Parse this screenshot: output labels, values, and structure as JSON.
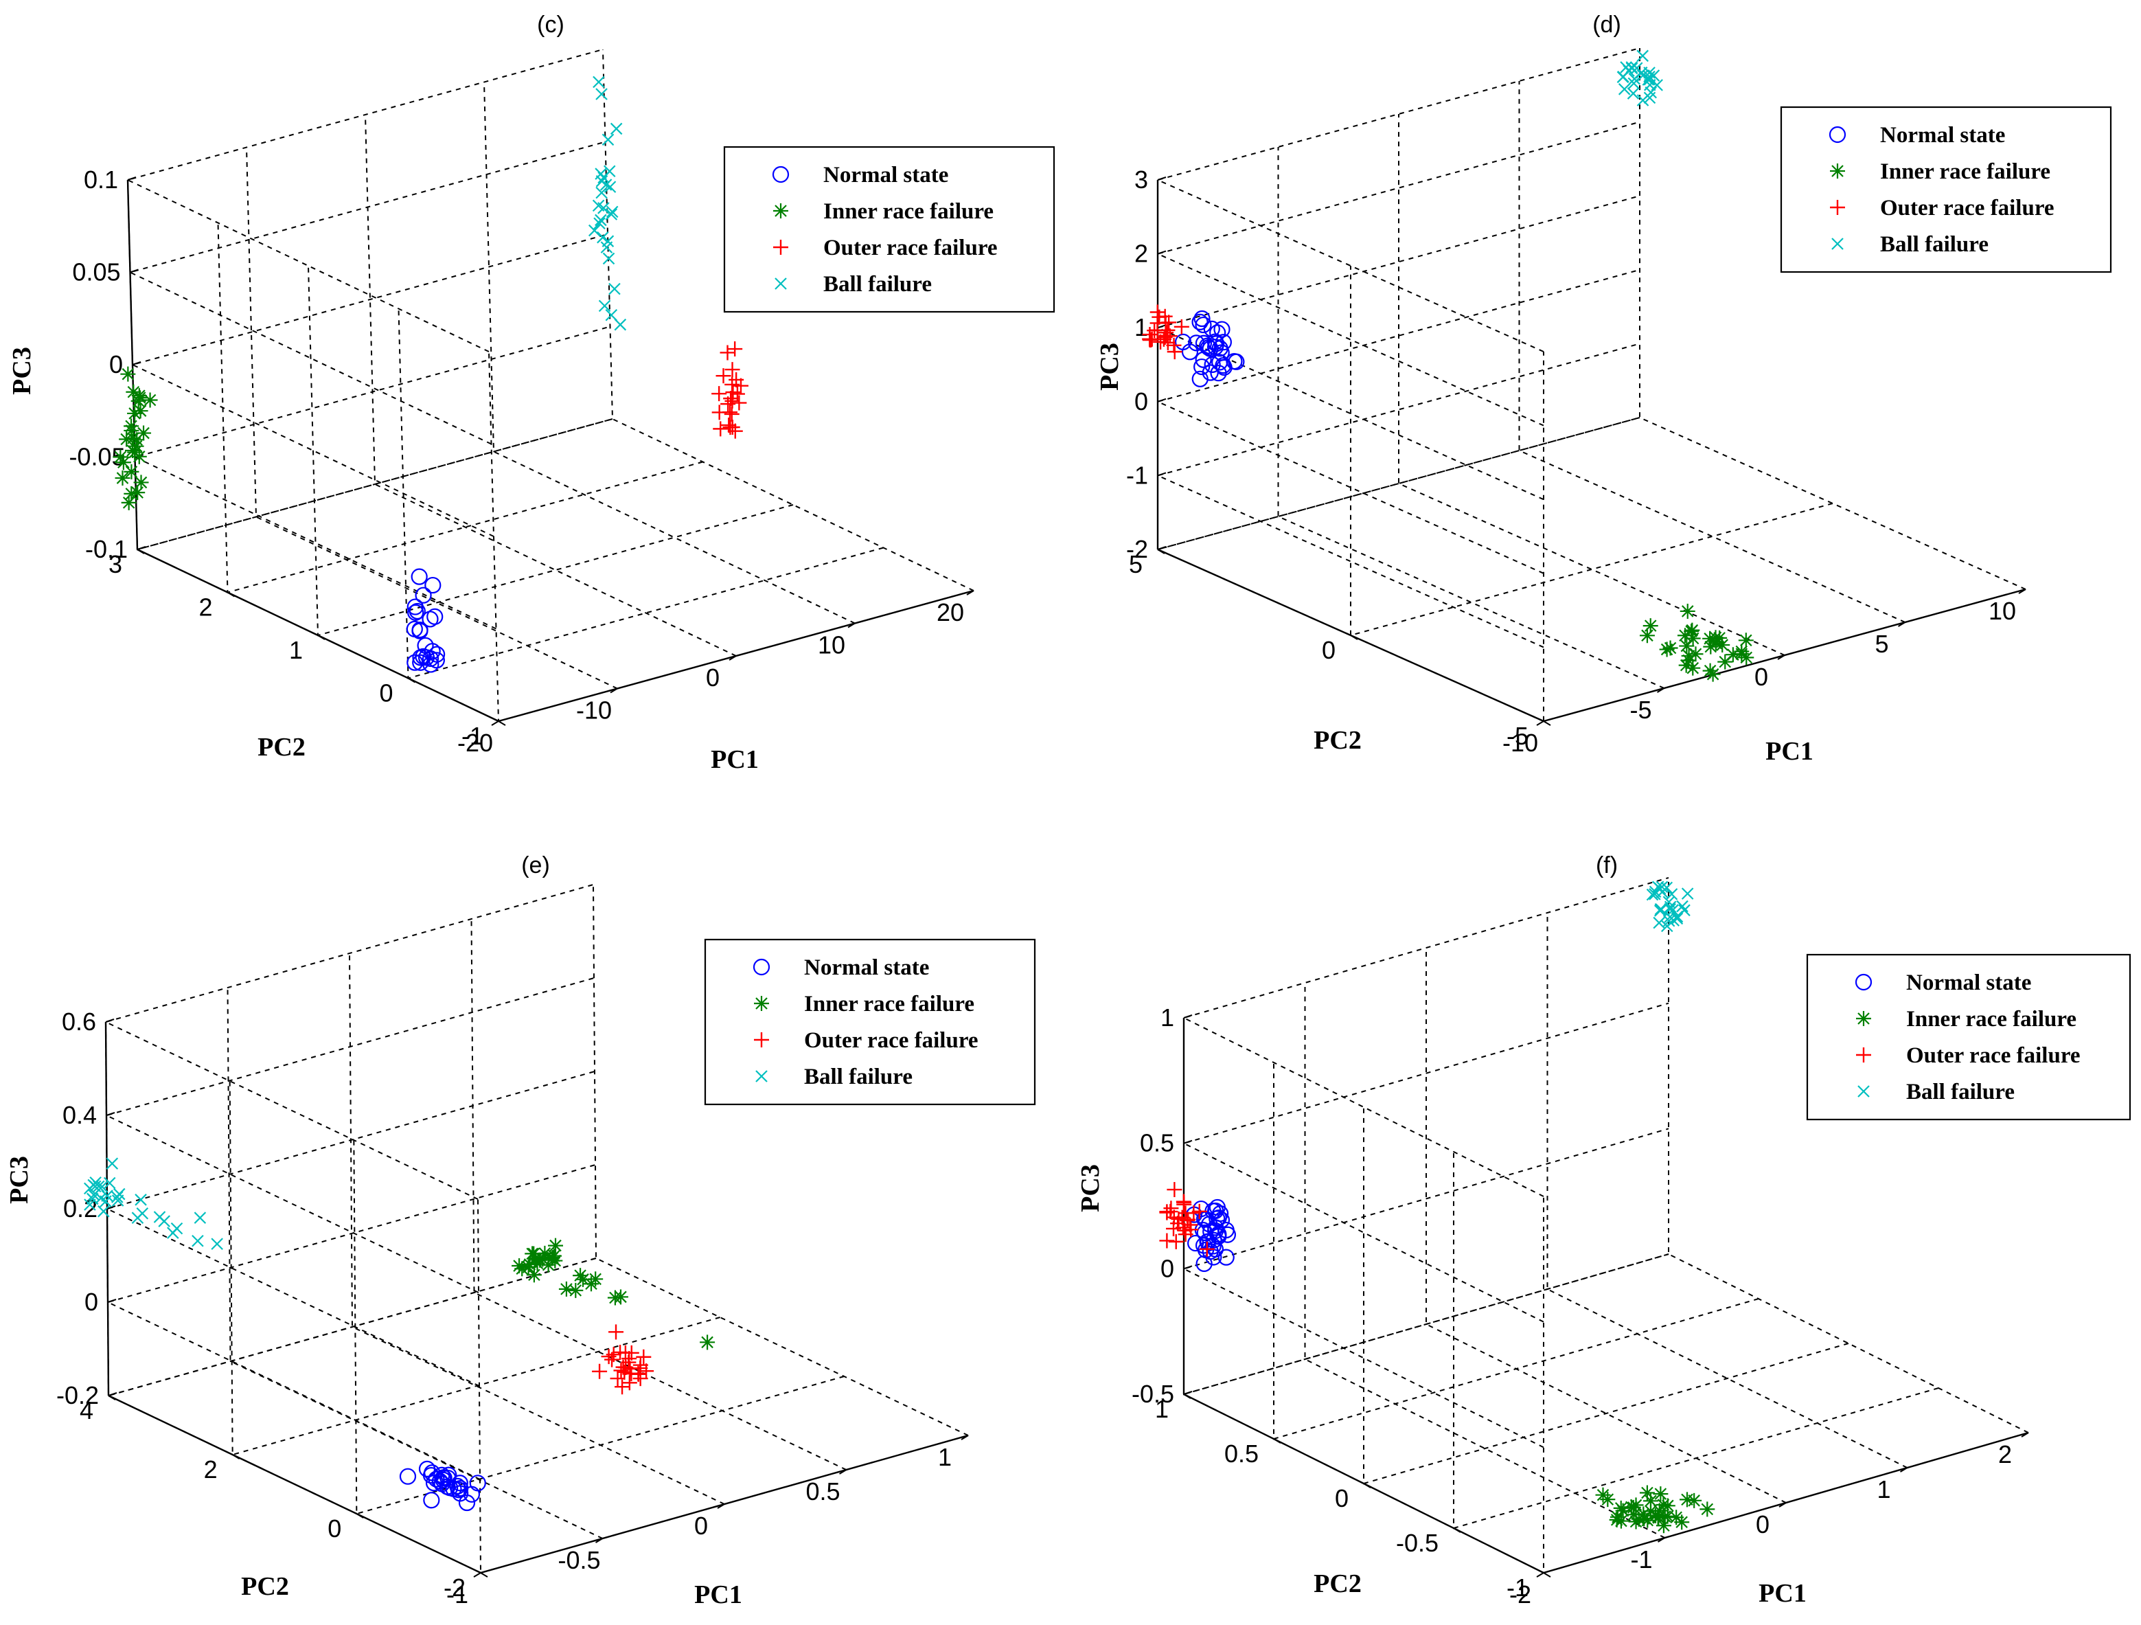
{
  "chart_data": [
    {
      "id": "c",
      "type": "scatter",
      "title": "(c)",
      "xlabel": "PC1",
      "ylabel": "PC2",
      "zlabel": "PC3",
      "xlim": [
        -20,
        20
      ],
      "ylim": [
        -1,
        3
      ],
      "zlim": [
        -0.1,
        0.1
      ],
      "xticks": [
        "-20",
        "-10",
        "0",
        "10",
        "20"
      ],
      "yticks": [
        "-1",
        "0",
        "1",
        "2",
        "3"
      ],
      "zticks": [
        "-0.1",
        "-0.05",
        "0",
        "0.05",
        "0.1"
      ],
      "legend": [
        "Normal state",
        "Inner race failure",
        "Outer race failure",
        "Ball failure"
      ],
      "series": [
        {
          "name": "Normal state",
          "marker": "o",
          "color": "#0000ff",
          "center": [
            -15,
            0.5,
            -0.1
          ],
          "spread": [
            0.6,
            0.05,
            0.022
          ],
          "n": 22,
          "seed": 11
        },
        {
          "name": "Inner race failure",
          "marker": "*",
          "color": "#008000",
          "center": [
            -20,
            3,
            -0.04
          ],
          "spread": [
            0.7,
            0.05,
            0.022
          ],
          "n": 26,
          "seed": 12
        },
        {
          "name": "Outer race failure",
          "marker": "+",
          "color": "#ff0000",
          "center": [
            15,
            1,
            -0.035
          ],
          "spread": [
            0.4,
            0.05,
            0.012
          ],
          "n": 22,
          "seed": 13
        },
        {
          "name": "Ball failure",
          "marker": "x",
          "color": "#00bfbf",
          "center": [
            20,
            3,
            0.02
          ],
          "spread": [
            0.3,
            0.05,
            0.03
          ],
          "n": 26,
          "seed": 14
        }
      ]
    },
    {
      "id": "d",
      "type": "scatter",
      "title": "(d)",
      "xlabel": "PC1",
      "ylabel": "PC2",
      "zlabel": "PC3",
      "xlim": [
        -10,
        10
      ],
      "ylim": [
        -5,
        5
      ],
      "zlim": [
        -2,
        3
      ],
      "xticks": [
        "-10",
        "-5",
        "0",
        "5",
        "10"
      ],
      "yticks": [
        "-5",
        "0",
        "5"
      ],
      "zticks": [
        "-2",
        "-1",
        "0",
        "1",
        "2",
        "3"
      ],
      "legend": [
        "Normal state",
        "Inner race failure",
        "Outer race failure",
        "Ball failure"
      ],
      "series": [
        {
          "name": "Normal state",
          "marker": "o",
          "color": "#0000ff",
          "center": [
            -10,
            3.6,
            1.0
          ],
          "spread": [
            0.3,
            0.3,
            0.18
          ],
          "n": 30,
          "seed": 21
        },
        {
          "name": "Inner race failure",
          "marker": "*",
          "color": "#008000",
          "center": [
            -2,
            -4,
            -2.0
          ],
          "spread": [
            0.6,
            0.6,
            0.12
          ],
          "n": 30,
          "seed": 22
        },
        {
          "name": "Outer race failure",
          "marker": "+",
          "color": "#ff0000",
          "center": [
            -10,
            5,
            1.0
          ],
          "spread": [
            0.3,
            0.3,
            0.14
          ],
          "n": 24,
          "seed": 23
        },
        {
          "name": "Ball failure",
          "marker": "x",
          "color": "#00bfbf",
          "center": [
            10,
            5,
            2.6
          ],
          "spread": [
            0.3,
            0.3,
            0.12
          ],
          "n": 24,
          "seed": 24
        }
      ]
    },
    {
      "id": "e",
      "type": "scatter",
      "title": "(e)",
      "xlabel": "PC1",
      "ylabel": "PC2",
      "zlabel": "PC3",
      "xlim": [
        -1,
        1
      ],
      "ylim": [
        -2,
        4
      ],
      "zlim": [
        -0.2,
        0.6
      ],
      "xticks": [
        "-1",
        "-0.5",
        "0",
        "0.5",
        "1"
      ],
      "yticks": [
        "-2",
        "0",
        "2",
        "4"
      ],
      "zticks": [
        "-0.2",
        "0",
        "0.2",
        "0.4",
        "0.6"
      ],
      "legend": [
        "Normal state",
        "Inner race failure",
        "Outer race failure",
        "Ball failure"
      ],
      "series": [
        {
          "name": "Normal state",
          "marker": "o",
          "color": "#0000ff",
          "center": [
            -0.6,
            0.0,
            -0.2
          ],
          "spread": [
            0.03,
            0.25,
            0.01
          ],
          "n": 26,
          "seed": 31
        },
        {
          "name": "Inner race failure",
          "marker": "*",
          "color": "#008000",
          "center": [
            0.8,
            4,
            -0.18
          ],
          "spread": [
            0.04,
            0.6,
            0.008
          ],
          "n": 28,
          "seed": 32
        },
        {
          "name": "Outer race failure",
          "marker": "+",
          "color": "#ff0000",
          "center": [
            0.5,
            1.5,
            -0.2
          ],
          "spread": [
            0.03,
            0.2,
            0.02
          ],
          "n": 26,
          "seed": 33
        },
        {
          "name": "Ball failure",
          "marker": "x",
          "color": "#00bfbf",
          "center": [
            -1,
            4,
            0.23
          ],
          "spread": [
            0.05,
            0.8,
            0.02
          ],
          "n": 28,
          "seed": 34
        }
      ]
    },
    {
      "id": "f",
      "type": "scatter",
      "title": "(f)",
      "xlabel": "PC1",
      "ylabel": "PC2",
      "zlabel": "PC3",
      "xlim": [
        -2,
        2
      ],
      "ylim": [
        -1,
        1
      ],
      "zlim": [
        -0.5,
        1
      ],
      "xticks": [
        "-2",
        "-1",
        "0",
        "1",
        "2"
      ],
      "yticks": [
        "-1",
        "-0.5",
        "0",
        "0.5",
        "1"
      ],
      "zticks": [
        "-0.5",
        "0",
        "0.5",
        "1"
      ],
      "legend": [
        "Normal state",
        "Inner race failure",
        "Outer race failure",
        "Ball failure"
      ],
      "series": [
        {
          "name": "Normal state",
          "marker": "o",
          "color": "#0000ff",
          "center": [
            -2,
            0.85,
            0.22
          ],
          "spread": [
            0.05,
            0.05,
            0.06
          ],
          "n": 34,
          "seed": 41
        },
        {
          "name": "Inner race failure",
          "marker": "*",
          "color": "#008000",
          "center": [
            -0.8,
            -0.8,
            -0.48
          ],
          "spread": [
            0.15,
            0.1,
            0.04
          ],
          "n": 34,
          "seed": 42
        },
        {
          "name": "Outer race failure",
          "marker": "+",
          "color": "#ff0000",
          "center": [
            -2,
            1.0,
            0.2
          ],
          "spread": [
            0.05,
            0.05,
            0.05
          ],
          "n": 26,
          "seed": 43
        },
        {
          "name": "Ball failure",
          "marker": "x",
          "color": "#00bfbf",
          "center": [
            2,
            1,
            0.9
          ],
          "spread": [
            0.05,
            0.05,
            0.05
          ],
          "n": 26,
          "seed": 44
        }
      ]
    }
  ]
}
